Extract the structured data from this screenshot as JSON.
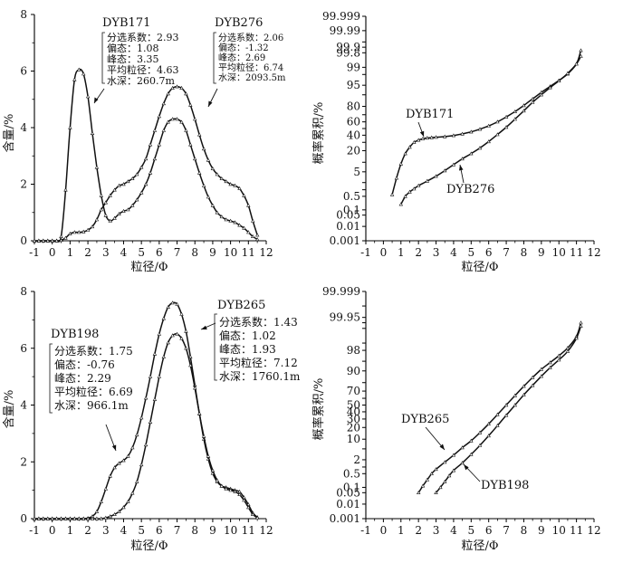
{
  "figure": {
    "line_color": "#111111",
    "marker_color": "#111111",
    "axis_color": "#000000"
  },
  "chart_data": [
    {
      "id": "a",
      "type": "line",
      "ylabel": "含量/%",
      "xlabel": "粒径/Φ",
      "xlim": [
        -1,
        12
      ],
      "ylim": [
        0,
        8
      ],
      "xticks": [
        "-1",
        "0",
        "1",
        "2",
        "3",
        "4",
        "5",
        "6",
        "7",
        "8",
        "9",
        "10",
        "11",
        "12"
      ],
      "yticks": [
        "0",
        "2",
        "4",
        "6",
        "8"
      ],
      "series": [
        {
          "name": "DYB171",
          "x": [
            -1,
            -0.75,
            -0.5,
            -0.25,
            0,
            0.25,
            0.5,
            0.75,
            1,
            1.25,
            1.5,
            1.75,
            2,
            2.25,
            2.5,
            2.75,
            3,
            3.25,
            3.5,
            3.75,
            4,
            4.25,
            4.5,
            4.75,
            5,
            5.25,
            5.5,
            5.75,
            6,
            6.25,
            6.5,
            6.75,
            7,
            7.25,
            7.5,
            7.75,
            8,
            8.25,
            8.5,
            8.75,
            9,
            9.25,
            9.5,
            9.75,
            10,
            10.25,
            10.5,
            10.75,
            11,
            11.25,
            11.5
          ],
          "values": [
            0,
            0,
            0,
            0,
            0,
            0,
            0.15,
            1.8,
            4.0,
            5.7,
            6.05,
            5.9,
            5.1,
            3.8,
            2.6,
            1.6,
            0.9,
            0.7,
            0.8,
            0.95,
            1.05,
            1.1,
            1.25,
            1.45,
            1.7,
            2.0,
            2.4,
            2.9,
            3.4,
            3.9,
            4.2,
            4.3,
            4.3,
            4.2,
            3.9,
            3.4,
            2.9,
            2.4,
            1.95,
            1.55,
            1.25,
            1.0,
            0.85,
            0.75,
            0.7,
            0.65,
            0.55,
            0.45,
            0.3,
            0.15,
            0.05
          ]
        },
        {
          "name": "DYB276",
          "x": [
            -1,
            -0.75,
            -0.5,
            -0.25,
            0,
            0.25,
            0.5,
            0.75,
            1,
            1.25,
            1.5,
            1.75,
            2,
            2.25,
            2.5,
            2.75,
            3,
            3.25,
            3.5,
            3.75,
            4,
            4.25,
            4.5,
            4.75,
            5,
            5.25,
            5.5,
            5.75,
            6,
            6.25,
            6.5,
            6.75,
            7,
            7.25,
            7.5,
            7.75,
            8,
            8.25,
            8.5,
            8.75,
            9,
            9.25,
            9.5,
            9.75,
            10,
            10.25,
            10.5,
            10.75,
            11,
            11.25,
            11.5
          ],
          "values": [
            0,
            0,
            0,
            0,
            0,
            0,
            0.02,
            0.1,
            0.25,
            0.3,
            0.3,
            0.32,
            0.38,
            0.5,
            0.75,
            1.1,
            1.35,
            1.6,
            1.8,
            1.95,
            2.0,
            2.1,
            2.2,
            2.35,
            2.6,
            2.9,
            3.4,
            3.9,
            4.4,
            4.85,
            5.2,
            5.4,
            5.45,
            5.4,
            5.2,
            4.8,
            4.3,
            3.75,
            3.25,
            2.85,
            2.55,
            2.35,
            2.2,
            2.1,
            2.0,
            1.95,
            1.85,
            1.6,
            1.25,
            0.7,
            0.2
          ]
        }
      ],
      "annotations": [
        {
          "title": "DYB171",
          "lines": [
            "分选系数：2.93",
            "偏态：1.08",
            "峰态：3.35",
            "平均粒径：4.63",
            "水深：260.7m"
          ]
        },
        {
          "title": "DYB276",
          "lines": [
            "分选系数：2.06",
            "偏态：-1.32",
            "峰态：2.69",
            "平均粒径：6.74",
            "水深：2093.5m"
          ]
        }
      ]
    },
    {
      "id": "b",
      "type": "line",
      "ylabel": "概率累积/%",
      "xlabel": "粒径/Φ",
      "xlim": [
        -1,
        12
      ],
      "yscale": "probability",
      "yticks": [
        "0.001",
        "0.01",
        "0.05",
        "0.1",
        "0.5",
        "1",
        "2",
        "5",
        "10",
        "20",
        "30",
        "40",
        "50",
        "60",
        "70",
        "80",
        "90",
        "95",
        "98",
        "99",
        "99.8",
        "99.9",
        "99.95",
        "99.99",
        "99.999"
      ],
      "yticks_numeric": [
        0.001,
        0.01,
        0.05,
        0.1,
        0.5,
        1,
        2,
        5,
        10,
        20,
        30,
        40,
        50,
        60,
        70,
        80,
        90,
        95,
        98,
        99,
        99.8,
        99.9,
        99.95,
        99.99,
        99.999
      ],
      "ytick_labels_shown": [
        "0.001",
        "0.01",
        "0.05",
        "0.1",
        "0.5",
        "",
        "",
        "5",
        "",
        "20",
        "",
        "40",
        "",
        "60",
        "",
        "80",
        "",
        "95",
        "",
        "99",
        "99.8",
        "99.9",
        "",
        "99.99",
        "99.999"
      ],
      "xticks": [
        "-1",
        "0",
        "1",
        "2",
        "3",
        "4",
        "5",
        "6",
        "7",
        "8",
        "9",
        "10",
        "11",
        "12"
      ],
      "series": [
        {
          "name": "DYB171",
          "x": [
            0.5,
            0.75,
            1,
            1.25,
            1.5,
            1.75,
            2,
            2.25,
            2.5,
            2.75,
            3,
            3.5,
            4,
            4.5,
            5,
            5.5,
            6,
            6.5,
            7,
            7.5,
            8,
            8.5,
            9,
            9.5,
            10,
            10.5,
            11,
            11.25
          ],
          "values": [
            0.6,
            3,
            9,
            17,
            24,
            30,
            33,
            35,
            36,
            36.5,
            37,
            38,
            39.5,
            42,
            45,
            49,
            54,
            60,
            67,
            74,
            81,
            87,
            91.5,
            94.5,
            96.6,
            98.1,
            99.3,
            99.85
          ]
        },
        {
          "name": "DYB276",
          "x": [
            1,
            1.25,
            1.5,
            1.75,
            2,
            2.5,
            3,
            3.5,
            4,
            4.5,
            5,
            5.5,
            6,
            6.5,
            7,
            7.5,
            8,
            8.5,
            9,
            9.5,
            10,
            10.5,
            11,
            11.25
          ],
          "values": [
            0.2,
            0.5,
            0.8,
            1.1,
            1.5,
            2.3,
            3.5,
            5.5,
            8.5,
            12.5,
            17,
            23,
            31,
            41,
            52,
            64,
            75,
            84,
            90,
            94,
            96.5,
            98.2,
            99.3,
            99.7
          ]
        }
      ],
      "annotations": [
        {
          "title": "DYB171"
        },
        {
          "title": "DYB276"
        }
      ]
    },
    {
      "id": "c",
      "type": "line",
      "ylabel": "含量/%",
      "xlabel": "粒径/Φ",
      "xlim": [
        -1,
        12
      ],
      "ylim": [
        0,
        8
      ],
      "xticks": [
        "-1",
        "0",
        "1",
        "2",
        "3",
        "4",
        "5",
        "6",
        "7",
        "8",
        "9",
        "10",
        "11",
        "12"
      ],
      "yticks": [
        "0",
        "2",
        "4",
        "6",
        "8"
      ],
      "series": [
        {
          "name": "DYB265",
          "x": [
            -1,
            -0.75,
            -0.5,
            -0.25,
            0,
            0.25,
            0.5,
            0.75,
            1,
            1.25,
            1.5,
            1.75,
            2,
            2.25,
            2.5,
            2.75,
            3,
            3.25,
            3.5,
            3.75,
            4,
            4.25,
            4.5,
            4.75,
            5,
            5.25,
            5.5,
            5.75,
            6,
            6.25,
            6.5,
            6.75,
            7,
            7.25,
            7.5,
            7.75,
            8,
            8.25,
            8.5,
            8.75,
            9,
            9.25,
            9.5,
            9.75,
            10,
            10.25,
            10.5,
            10.75,
            11,
            11.25,
            11.5
          ],
          "values": [
            0,
            0,
            0,
            0,
            0,
            0,
            0,
            0,
            0,
            0,
            0,
            0,
            0.02,
            0.08,
            0.25,
            0.6,
            1.05,
            1.5,
            1.8,
            1.95,
            2.05,
            2.2,
            2.5,
            2.95,
            3.55,
            4.25,
            5.0,
            5.8,
            6.5,
            7.05,
            7.45,
            7.6,
            7.55,
            7.2,
            6.6,
            5.7,
            4.7,
            3.7,
            2.8,
            2.1,
            1.6,
            1.3,
            1.15,
            1.1,
            1.05,
            1.0,
            0.95,
            0.75,
            0.5,
            0.2,
            0.05
          ]
        },
        {
          "name": "DYB198",
          "x": [
            -1,
            -0.75,
            -0.5,
            -0.25,
            0,
            0.25,
            0.5,
            0.75,
            1,
            1.25,
            1.5,
            1.75,
            2,
            2.25,
            2.5,
            2.75,
            3,
            3.25,
            3.5,
            3.75,
            4,
            4.25,
            4.5,
            4.75,
            5,
            5.25,
            5.5,
            5.75,
            6,
            6.25,
            6.5,
            6.75,
            7,
            7.25,
            7.5,
            7.75,
            8,
            8.25,
            8.5,
            8.75,
            9,
            9.25,
            9.5,
            9.75,
            10,
            10.25,
            10.5,
            10.75,
            11,
            11.25,
            11.5
          ],
          "values": [
            0,
            0,
            0,
            0,
            0,
            0,
            0,
            0,
            0,
            0,
            0,
            0,
            0,
            0,
            0,
            0,
            0.03,
            0.08,
            0.15,
            0.25,
            0.4,
            0.6,
            0.9,
            1.3,
            1.9,
            2.6,
            3.4,
            4.2,
            5.0,
            5.7,
            6.2,
            6.45,
            6.5,
            6.35,
            6.0,
            5.4,
            4.6,
            3.7,
            2.9,
            2.2,
            1.7,
            1.35,
            1.15,
            1.05,
            1.0,
            0.95,
            0.85,
            0.65,
            0.4,
            0.15,
            0.03
          ]
        }
      ],
      "annotations": [
        {
          "title": "DYB265",
          "lines": [
            "分选系数：1.43",
            "偏态：1.02",
            "峰态：1.93",
            "平均粒径：7.12",
            "水深：1760.1m"
          ]
        },
        {
          "title": "DYB198",
          "lines": [
            "分选系数：1.75",
            "偏态：-0.76",
            "峰态：2.29",
            "平均粒径：6.69",
            "水深：966.1m"
          ]
        }
      ]
    },
    {
      "id": "d",
      "type": "line",
      "ylabel": "概率累积/%",
      "xlabel": "粒径/Φ",
      "xlim": [
        -1,
        12
      ],
      "yscale": "probability",
      "yticks_numeric": [
        0.001,
        0.01,
        0.05,
        0.1,
        0.5,
        1,
        2,
        5,
        10,
        20,
        30,
        40,
        50,
        60,
        70,
        80,
        90,
        95,
        98,
        99,
        99.8,
        99.9,
        99.95,
        99.99,
        99.999
      ],
      "ytick_labels_shown": [
        "0.001",
        "0.01",
        "0.05",
        "0.1",
        "0.5",
        "",
        "2",
        "",
        "10",
        "20",
        "30",
        "40",
        "50",
        "",
        "70",
        "",
        "90",
        "",
        "98",
        "",
        "",
        "",
        "99.95",
        "",
        "99.999"
      ],
      "xticks": [
        "-1",
        "0",
        "1",
        "2",
        "3",
        "4",
        "5",
        "6",
        "7",
        "8",
        "9",
        "10",
        "11",
        "12"
      ],
      "series": [
        {
          "name": "DYB265",
          "x": [
            2,
            2.25,
            2.5,
            2.75,
            3,
            3.5,
            4,
            4.5,
            5,
            5.5,
            6,
            6.5,
            7,
            7.5,
            8,
            8.5,
            9,
            9.5,
            10,
            10.5,
            11,
            11.25
          ],
          "values": [
            0.05,
            0.12,
            0.25,
            0.5,
            0.8,
            1.6,
            3,
            5.5,
            9,
            15,
            24,
            36,
            50,
            64,
            76,
            85,
            91,
            94.5,
            96.8,
            98.4,
            99.5,
            99.9
          ]
        },
        {
          "name": "DYB198",
          "x": [
            3,
            3.25,
            3.5,
            3.75,
            4,
            4.5,
            5,
            5.5,
            6,
            6.5,
            7,
            7.5,
            8,
            8.5,
            9,
            9.5,
            10,
            10.5,
            11,
            11.25
          ],
          "values": [
            0.05,
            0.1,
            0.2,
            0.4,
            0.7,
            1.5,
            3.2,
            6.5,
            12.5,
            22,
            35,
            50,
            65,
            77,
            86,
            92,
            95.5,
            97.8,
            99.4,
            99.85
          ]
        }
      ],
      "annotations": [
        {
          "title": "DYB265"
        },
        {
          "title": "DYB198"
        }
      ]
    }
  ]
}
